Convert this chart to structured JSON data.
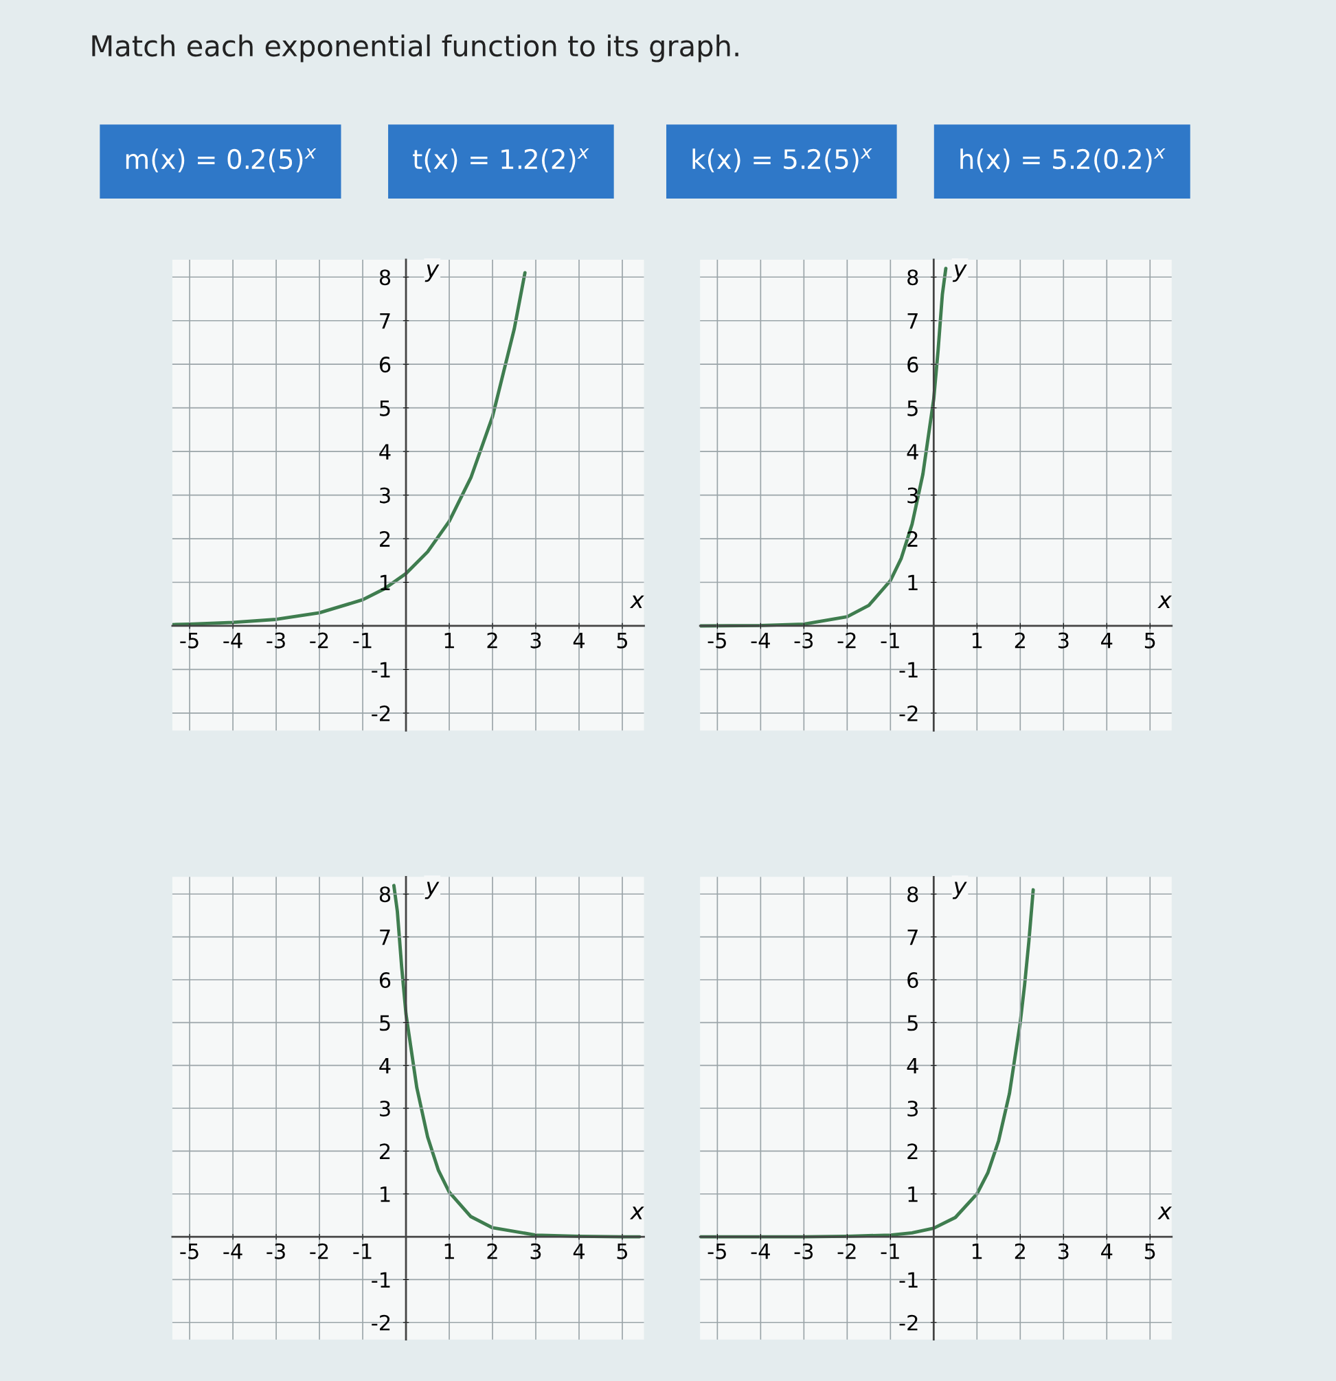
{
  "chart_data": [
    {
      "type": "line",
      "title": "Match each exponential function to its graph.",
      "annotations": [
        "m(x) = 0.2(5)$^{x}$",
        "t(x) = 1.2(2)$^{x}$",
        "k(x) = 5.2(5)$^{x}$",
        "h(x) = 5.2(0.2)$^{x}$"
      ],
      "xlabel": "x",
      "ylabel": "y",
      "xlim": [
        -5.4,
        5.5
      ],
      "ylim": [
        -2.4,
        8.4
      ],
      "xticks": [
        -5,
        -4,
        -3,
        -2,
        -1,
        1,
        2,
        3,
        4,
        5
      ],
      "yticks": [
        -2,
        -1,
        1,
        2,
        3,
        4,
        5,
        6,
        7,
        8
      ],
      "grid": true,
      "series": [
        {
          "color": "#3f7d4f",
          "x": [
            -5.4,
            -5,
            -4,
            -3,
            -2,
            -1,
            -0.5,
            0,
            0.5,
            1,
            1.5,
            2,
            2.5,
            2.75
          ],
          "values": [
            0.03,
            0.04,
            0.08,
            0.15,
            0.3,
            0.6,
            0.85,
            1.2,
            1.7,
            2.4,
            3.4,
            4.8,
            6.8,
            8.1
          ]
        }
      ]
    },
    {
      "type": "line",
      "xlabel": "x",
      "ylabel": "y",
      "xlim": [
        -5.4,
        5.5
      ],
      "ylim": [
        -2.4,
        8.4
      ],
      "xticks": [
        -5,
        -4,
        -3,
        -2,
        -1,
        1,
        2,
        3,
        4,
        5
      ],
      "yticks": [
        -2,
        -1,
        1,
        2,
        3,
        4,
        5,
        6,
        7,
        8
      ],
      "grid": true,
      "series": [
        {
          "color": "#3f7d4f",
          "x": [
            -5.4,
            -4,
            -3,
            -2,
            -1.5,
            -1,
            -0.75,
            -0.5,
            -0.25,
            0,
            0.1,
            0.2,
            0.28
          ],
          "values": [
            0,
            0.01,
            0.04,
            0.21,
            0.47,
            1.04,
            1.55,
            2.33,
            3.48,
            5.2,
            6.3,
            7.6,
            8.2
          ]
        }
      ]
    },
    {
      "type": "line",
      "xlabel": "x",
      "ylabel": "y",
      "xlim": [
        -5.4,
        5.5
      ],
      "ylim": [
        -2.4,
        8.4
      ],
      "xticks": [
        -5,
        -4,
        -3,
        -2,
        -1,
        1,
        2,
        3,
        4,
        5
      ],
      "yticks": [
        -2,
        -1,
        1,
        2,
        3,
        4,
        5,
        6,
        7,
        8
      ],
      "grid": true,
      "series": [
        {
          "color": "#3f7d4f",
          "x": [
            -0.28,
            -0.2,
            -0.1,
            0,
            0.25,
            0.5,
            0.75,
            1,
            1.5,
            2,
            3,
            4,
            5,
            5.4
          ],
          "values": [
            8.2,
            7.6,
            6.3,
            5.2,
            3.48,
            2.33,
            1.55,
            1.04,
            0.47,
            0.21,
            0.04,
            0.01,
            0,
            0
          ]
        }
      ]
    },
    {
      "type": "line",
      "xlabel": "x",
      "ylabel": "y",
      "xlim": [
        -5.4,
        5.5
      ],
      "ylim": [
        -2.4,
        8.4
      ],
      "xticks": [
        -5,
        -4,
        -3,
        -2,
        -1,
        1,
        2,
        3,
        4,
        5
      ],
      "yticks": [
        -2,
        -1,
        1,
        2,
        3,
        4,
        5,
        6,
        7,
        8
      ],
      "grid": true,
      "series": [
        {
          "color": "#3f7d4f",
          "x": [
            -5.4,
            -3,
            -2,
            -1,
            -0.5,
            0,
            0.5,
            1,
            1.25,
            1.5,
            1.75,
            2,
            2.1,
            2.2,
            2.3
          ],
          "values": [
            0,
            0,
            0.01,
            0.04,
            0.09,
            0.2,
            0.45,
            1.0,
            1.49,
            2.24,
            3.34,
            5.0,
            5.87,
            6.9,
            8.1
          ]
        }
      ]
    }
  ]
}
